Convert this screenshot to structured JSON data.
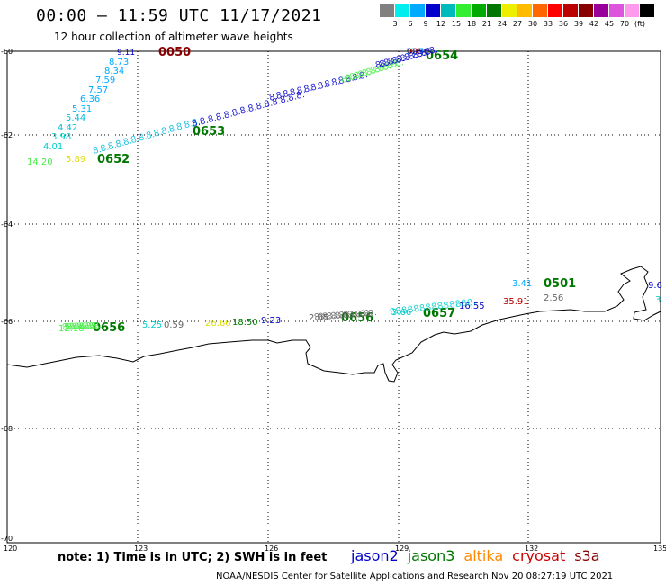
{
  "header": {
    "title": "00:00 – 11:59 UTC 11/17/2021",
    "subtitle": "12 hour collection of altimeter wave heights"
  },
  "legend": {
    "colors": [
      "#808080",
      "#00eeee",
      "#00aaff",
      "#0000cc",
      "#00bbbb",
      "#33ee33",
      "#00aa00",
      "#007700",
      "#eeee00",
      "#ffbb00",
      "#ff6600",
      "#ff0000",
      "#bb0000",
      "#880000",
      "#990099",
      "#dd55dd",
      "#ff99ee",
      "#000000"
    ],
    "labels": [
      "3",
      "6",
      "9",
      "12",
      "15",
      "18",
      "21",
      "24",
      "27",
      "30",
      "33",
      "36",
      "39",
      "42",
      "45",
      "70",
      "(ft)"
    ]
  },
  "axes": {
    "lat_labels": [
      "-60",
      "-62",
      "-64",
      "-66",
      "-68",
      "-70"
    ],
    "lon_labels": [
      "120",
      "123",
      "126",
      "129",
      "132",
      "135"
    ]
  },
  "observations": [
    {
      "text": "0050",
      "color": "#880000",
      "mark": "time"
    },
    {
      "text": "9.11",
      "color": "#0000cc"
    },
    {
      "text": "8.73",
      "color": "#00aaff"
    },
    {
      "text": "8.34",
      "color": "#00aaff"
    },
    {
      "text": "7.59",
      "color": "#00aaff"
    },
    {
      "text": "7.57",
      "color": "#00aaff"
    },
    {
      "text": "6.36",
      "color": "#00aaff"
    },
    {
      "text": "5.31",
      "color": "#00aaff"
    },
    {
      "text": "5.44",
      "color": "#00bbdd"
    },
    {
      "text": "4.42",
      "color": "#00bbdd"
    },
    {
      "text": "3.98",
      "color": "#00cccc"
    },
    {
      "text": "4.01",
      "color": "#00cccc"
    },
    {
      "text": "14.20",
      "color": "#44ee44"
    },
    {
      "text": "5.89",
      "color": "#dddd00"
    },
    {
      "text": "0652",
      "color": "#007700",
      "mark": "time"
    },
    {
      "text": "0653",
      "color": "#007700",
      "mark": "time"
    },
    {
      "text": "0654",
      "color": "#007700",
      "mark": "time"
    },
    {
      "text": "0050",
      "color": "#880000",
      "mark": "time"
    },
    {
      "text": "11.50",
      "color": "#00aaff"
    },
    {
      "text": "0656",
      "color": "#007700",
      "mark": "time"
    },
    {
      "text": "12.18",
      "color": "#44ee44"
    },
    {
      "text": "5.25",
      "color": "#00cccc"
    },
    {
      "text": "0.59",
      "color": "#666666"
    },
    {
      "text": "26.66",
      "color": "#dddd00"
    },
    {
      "text": "18.50",
      "color": "#007700"
    },
    {
      "text": "9.23",
      "color": "#0000cc"
    },
    {
      "text": "2.05",
      "color": "#666666"
    },
    {
      "text": "0656",
      "color": "#007700",
      "mark": "time"
    },
    {
      "text": "3.66",
      "color": "#00cccc"
    },
    {
      "text": "0657",
      "color": "#007700",
      "mark": "time"
    },
    {
      "text": "16.55",
      "color": "#0000cc"
    },
    {
      "text": "3.41",
      "color": "#00aaff"
    },
    {
      "text": "0501",
      "color": "#007700",
      "mark": "time"
    },
    {
      "text": "35.91",
      "color": "#bb0000"
    },
    {
      "text": "2.56",
      "color": "#666666"
    },
    {
      "text": "9.6",
      "color": "#0000cc"
    },
    {
      "text": "3.",
      "color": "#00cccc"
    }
  ],
  "footer": {
    "note": "note:  1) Time is in UTC;  2) SWH is in feet",
    "credit": "NOAA/NESDIS Center for Satellite Applications and Research    Nov 20 08:27:19 UTC 2021"
  },
  "satellites": [
    {
      "name": "jason2",
      "color": "#0000cc"
    },
    {
      "name": "jason3",
      "color": "#007700"
    },
    {
      "name": "altika",
      "color": "#ff8800"
    },
    {
      "name": "cryosat",
      "color": "#cc0000"
    },
    {
      "name": "s3a",
      "color": "#880000"
    }
  ]
}
